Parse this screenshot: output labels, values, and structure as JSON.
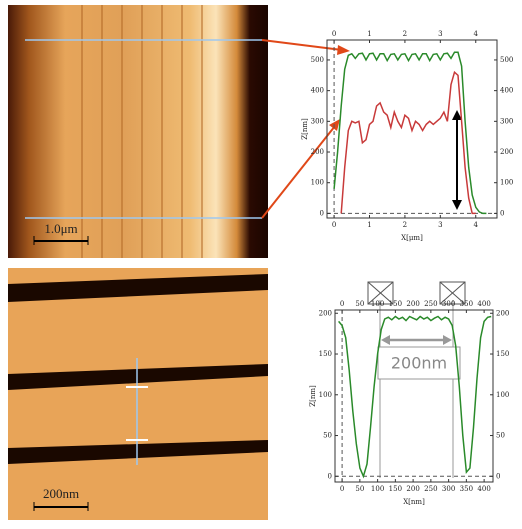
{
  "images": [
    {
      "scale_bar": "1.0μm"
    },
    {
      "scale_bar": "200nm"
    }
  ],
  "chart_data": [
    {
      "type": "line",
      "xlabel": "X[μm]",
      "ylabel": "Z[nm]",
      "x": [
        0,
        0.1,
        0.2,
        0.3,
        0.4,
        0.5,
        0.6,
        0.7,
        0.8,
        0.9,
        1.0,
        1.1,
        1.2,
        1.3,
        1.4,
        1.5,
        1.6,
        1.7,
        1.8,
        1.9,
        2.0,
        2.1,
        2.2,
        2.3,
        2.4,
        2.5,
        2.6,
        2.7,
        2.8,
        2.9,
        3.0,
        3.1,
        3.2,
        3.3,
        3.4,
        3.5,
        3.6,
        3.7,
        3.8,
        3.9,
        4.0,
        4.1,
        4.2,
        4.3
      ],
      "series": [
        {
          "color": "#2a8a2a",
          "values": [
            80,
            200,
            350,
            470,
            515,
            520,
            505,
            520,
            522,
            500,
            520,
            522,
            500,
            520,
            520,
            498,
            518,
            520,
            500,
            518,
            520,
            498,
            518,
            520,
            500,
            520,
            520,
            498,
            518,
            520,
            500,
            520,
            522,
            505,
            525,
            525,
            480,
            300,
            150,
            60,
            20,
            5,
            0,
            0
          ]
        },
        {
          "color": "#c83a3a",
          "values": [
            null,
            null,
            0,
            150,
            270,
            300,
            295,
            300,
            230,
            240,
            290,
            300,
            350,
            360,
            330,
            320,
            280,
            330,
            300,
            280,
            320,
            310,
            270,
            300,
            290,
            270,
            290,
            300,
            290,
            300,
            310,
            330,
            300,
            420,
            460,
            450,
            300,
            150,
            50,
            0,
            0,
            null,
            null,
            null
          ]
        }
      ],
      "xlim": [
        -0.2,
        4.6
      ],
      "ylim": [
        -15,
        565
      ],
      "xticks": [
        0,
        1,
        2,
        3,
        4
      ],
      "yticks": [
        0,
        100,
        200,
        300,
        400,
        500
      ]
    },
    {
      "type": "line",
      "xlabel": "X[nm]",
      "ylabel": "Z[nm]",
      "annotation": "200nm",
      "x": [
        -10,
        0,
        10,
        20,
        30,
        40,
        50,
        60,
        70,
        80,
        90,
        100,
        110,
        120,
        130,
        140,
        150,
        160,
        170,
        180,
        190,
        200,
        210,
        220,
        230,
        240,
        250,
        260,
        270,
        280,
        290,
        300,
        310,
        320,
        330,
        340,
        350,
        360,
        370,
        380,
        390,
        400,
        410,
        420
      ],
      "series": [
        {
          "color": "#2a8a2a",
          "values": [
            190,
            185,
            170,
            130,
            80,
            40,
            10,
            0,
            15,
            60,
            110,
            150,
            180,
            193,
            195,
            192,
            196,
            193,
            195,
            191,
            196,
            194,
            192,
            196,
            193,
            195,
            191,
            194,
            196,
            192,
            195,
            193,
            185,
            160,
            110,
            50,
            5,
            10,
            60,
            120,
            170,
            190,
            195,
            196
          ]
        }
      ],
      "xlim": [
        -20,
        425
      ],
      "ylim": [
        -7,
        204
      ],
      "xticks": [
        0,
        50,
        100,
        150,
        200,
        250,
        300,
        350,
        400
      ],
      "yticks": [
        0,
        50,
        100,
        150,
        200
      ]
    }
  ]
}
